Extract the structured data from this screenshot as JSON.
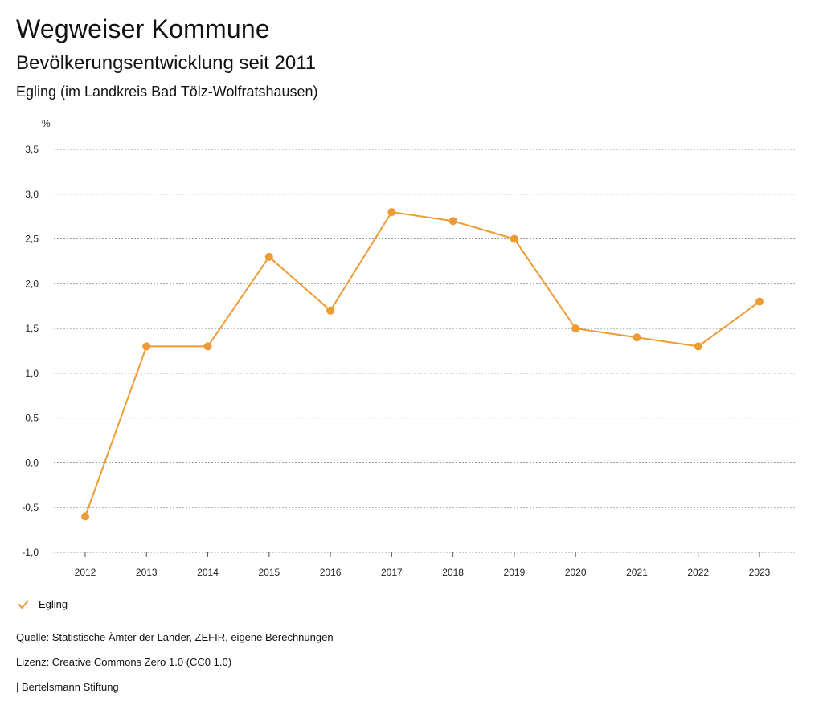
{
  "header": {
    "title": "Wegweiser Kommune",
    "subtitle": "Bevölkerungsentwicklung seit 2011",
    "region": "Egling (im Landkreis Bad Tölz-Wolfratshausen)"
  },
  "chart_data": {
    "type": "line",
    "title": "Bevölkerungsentwicklung seit 2011",
    "ylabel": "%",
    "xlabel": "",
    "ylim": [
      -1.0,
      3.5
    ],
    "yticks": [
      "-1,0",
      "-0,5",
      "0,0",
      "0,5",
      "1,0",
      "1,5",
      "2,0",
      "2,5",
      "3,0",
      "3,5"
    ],
    "ytick_values": [
      -1.0,
      -0.5,
      0.0,
      0.5,
      1.0,
      1.5,
      2.0,
      2.5,
      3.0,
      3.5
    ],
    "categories": [
      "2012",
      "2013",
      "2014",
      "2015",
      "2016",
      "2017",
      "2018",
      "2019",
      "2020",
      "2021",
      "2022",
      "2023"
    ],
    "grid": true,
    "legend_position": "bottom-left",
    "series": [
      {
        "name": "Egling",
        "color": "#ee9b33",
        "values": [
          -0.6,
          1.3,
          1.3,
          2.3,
          1.7,
          2.8,
          2.7,
          2.5,
          1.5,
          1.4,
          1.3,
          1.8
        ]
      }
    ]
  },
  "legend": {
    "items": [
      {
        "label": "Egling",
        "color": "#ee9b33",
        "icon": "check-icon"
      }
    ]
  },
  "footer": {
    "source": "Quelle: Statistische Ämter der Länder, ZEFIR, eigene Berechnungen",
    "license": "Lizenz: Creative Commons Zero 1.0 (CC0 1.0)",
    "publisher": "| Bertelsmann Stiftung"
  }
}
